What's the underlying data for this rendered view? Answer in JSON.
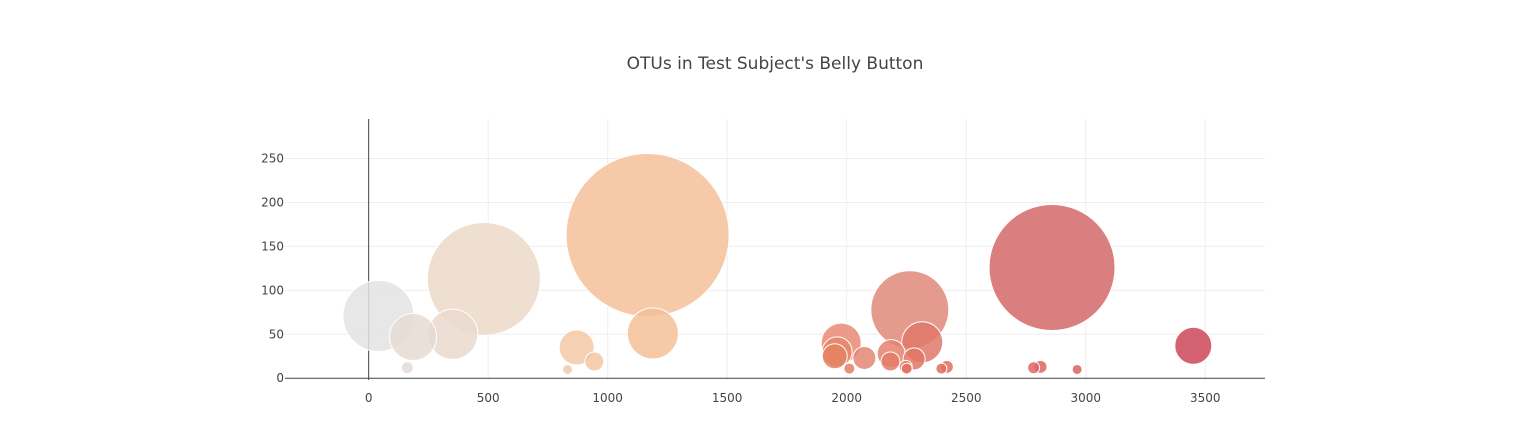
{
  "chart_data": {
    "type": "scatter",
    "title": "OTUs in Test Subject's Belly Button",
    "xlabel": "",
    "ylabel": "",
    "xlim": [
      -350,
      3750
    ],
    "ylim": [
      -2,
      295
    ],
    "x_ticks": [
      0,
      500,
      1000,
      1500,
      2000,
      2500,
      3000,
      3500
    ],
    "y_ticks": [
      0,
      50,
      100,
      150,
      200,
      250
    ],
    "grid": true,
    "legend": "none",
    "colorscale": "earth",
    "points": [
      {
        "x": 41,
        "y": 71,
        "size": 71,
        "color": "#e3e3e3"
      },
      {
        "x": 186,
        "y": 47,
        "size": 47,
        "color": "#e6dbd4"
      },
      {
        "x": 162,
        "y": 12,
        "size": 12,
        "color": "#e4dad3"
      },
      {
        "x": 352,
        "y": 50,
        "size": 50,
        "color": "#ead9cd"
      },
      {
        "x": 482,
        "y": 113,
        "size": 113,
        "color": "#ecd9c8"
      },
      {
        "x": 870,
        "y": 35,
        "size": 35,
        "color": "#f5c8a5"
      },
      {
        "x": 832,
        "y": 10,
        "size": 10,
        "color": "#f4c8a6"
      },
      {
        "x": 944,
        "y": 19,
        "size": 19,
        "color": "#f4c6a2"
      },
      {
        "x": 1167,
        "y": 163,
        "size": 163,
        "color": "#f5c09a"
      },
      {
        "x": 1189,
        "y": 51,
        "size": 51,
        "color": "#f5bf98"
      },
      {
        "x": 1977,
        "y": 40,
        "size": 40,
        "color": "#e78a72"
      },
      {
        "x": 1960,
        "y": 30,
        "size": 30,
        "color": "#e7876c"
      },
      {
        "x": 1950,
        "y": 25,
        "size": 25,
        "color": "#e5815f"
      },
      {
        "x": 2074,
        "y": 23,
        "size": 23,
        "color": "#e48671"
      },
      {
        "x": 2011,
        "y": 11,
        "size": 11,
        "color": "#e37f68"
      },
      {
        "x": 2186,
        "y": 28,
        "size": 28,
        "color": "#e4836e"
      },
      {
        "x": 2183,
        "y": 19,
        "size": 19,
        "color": "#e47d68"
      },
      {
        "x": 2264,
        "y": 78,
        "size": 78,
        "color": "#e0887a"
      },
      {
        "x": 2316,
        "y": 41,
        "size": 41,
        "color": "#e0786a"
      },
      {
        "x": 2282,
        "y": 22,
        "size": 22,
        "color": "#e27565"
      },
      {
        "x": 2247,
        "y": 13,
        "size": 13,
        "color": "#e27666"
      },
      {
        "x": 2251,
        "y": 11,
        "size": 11,
        "color": "#e07262"
      },
      {
        "x": 2396,
        "y": 11,
        "size": 11,
        "color": "#df6f62"
      },
      {
        "x": 2419,
        "y": 13,
        "size": 13,
        "color": "#df6e62"
      },
      {
        "x": 2859,
        "y": 126,
        "size": 126,
        "color": "#d4696a"
      },
      {
        "x": 2782,
        "y": 12,
        "size": 12,
        "color": "#db6666"
      },
      {
        "x": 2811,
        "y": 13,
        "size": 13,
        "color": "#da6565"
      },
      {
        "x": 2964,
        "y": 10,
        "size": 10,
        "color": "#d96262"
      },
      {
        "x": 3450,
        "y": 37,
        "size": 37,
        "color": "#cc4657"
      }
    ]
  }
}
